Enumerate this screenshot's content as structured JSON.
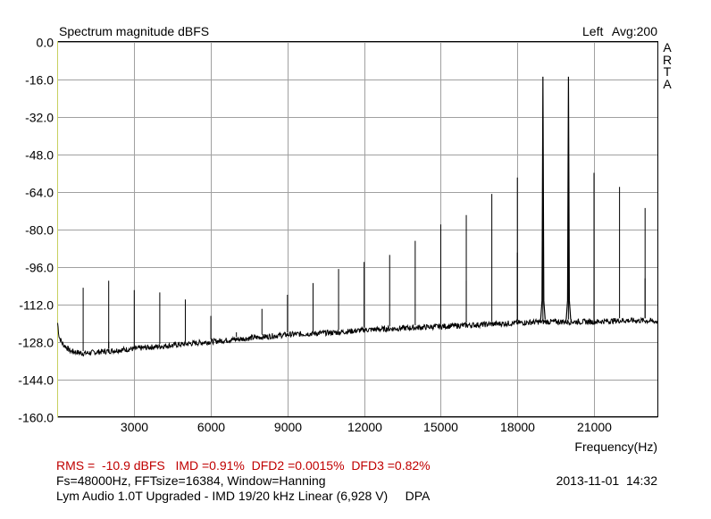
{
  "chart_data": {
    "type": "line",
    "title": "Spectrum magnitude dBFS",
    "channel_label": "Left",
    "avg_label": "Avg:200",
    "xlabel": "Frequency(Hz)",
    "ylabel": "",
    "xlim": [
      0,
      23500
    ],
    "ylim": [
      -160,
      0
    ],
    "x_ticks": [
      3000,
      6000,
      9000,
      12000,
      15000,
      18000,
      21000
    ],
    "x_tick_labels": [
      "3000",
      "6000",
      "9000",
      "12000",
      "15000",
      "18000",
      "21000"
    ],
    "y_ticks": [
      0,
      -16,
      -32,
      -48,
      -64,
      -80,
      -96,
      -112,
      -128,
      -144,
      -160
    ],
    "y_tick_labels": [
      "0.0",
      "-16.0",
      "-32.0",
      "-48.0",
      "-64.0",
      "-80.0",
      "-96.0",
      "-112.0",
      "-128.0",
      "-144.0",
      "-160.0"
    ],
    "grid": true,
    "color": "#000000",
    "noise_floor": [
      {
        "x": 0,
        "y": -120
      },
      {
        "x": 60,
        "y": -126
      },
      {
        "x": 200,
        "y": -129
      },
      {
        "x": 500,
        "y": -132
      },
      {
        "x": 1000,
        "y": -133
      },
      {
        "x": 2000,
        "y": -132
      },
      {
        "x": 3000,
        "y": -131
      },
      {
        "x": 4000,
        "y": -130
      },
      {
        "x": 5000,
        "y": -129
      },
      {
        "x": 6000,
        "y": -128
      },
      {
        "x": 7000,
        "y": -127
      },
      {
        "x": 8000,
        "y": -126
      },
      {
        "x": 9000,
        "y": -125
      },
      {
        "x": 10000,
        "y": -124.5
      },
      {
        "x": 11000,
        "y": -124
      },
      {
        "x": 12000,
        "y": -123
      },
      {
        "x": 13000,
        "y": -122.5
      },
      {
        "x": 14000,
        "y": -122
      },
      {
        "x": 15000,
        "y": -121.5
      },
      {
        "x": 16000,
        "y": -121
      },
      {
        "x": 17000,
        "y": -120.5
      },
      {
        "x": 18000,
        "y": -120
      },
      {
        "x": 19000,
        "y": -119.5
      },
      {
        "x": 20000,
        "y": -119.5
      },
      {
        "x": 21000,
        "y": -119.5
      },
      {
        "x": 22000,
        "y": -119
      },
      {
        "x": 23000,
        "y": -119
      },
      {
        "x": 23500,
        "y": -119.5
      }
    ],
    "peaks": [
      {
        "x": 1000,
        "y": -105
      },
      {
        "x": 2000,
        "y": -102
      },
      {
        "x": 2000,
        "y": -128
      },
      {
        "x": 3000,
        "y": -106
      },
      {
        "x": 4000,
        "y": -107
      },
      {
        "x": 5000,
        "y": -110
      },
      {
        "x": 6000,
        "y": -117
      },
      {
        "x": 7000,
        "y": -124
      },
      {
        "x": 8000,
        "y": -114
      },
      {
        "x": 9000,
        "y": -108
      },
      {
        "x": 10000,
        "y": -103
      },
      {
        "x": 11000,
        "y": -97
      },
      {
        "x": 12000,
        "y": -94
      },
      {
        "x": 13000,
        "y": -91
      },
      {
        "x": 14000,
        "y": -85
      },
      {
        "x": 15000,
        "y": -78
      },
      {
        "x": 16000,
        "y": -74
      },
      {
        "x": 16000,
        "y": -102
      },
      {
        "x": 17000,
        "y": -65
      },
      {
        "x": 18000,
        "y": -58
      },
      {
        "x": 18000,
        "y": -90
      },
      {
        "x": 19000,
        "y": -15
      },
      {
        "x": 19000,
        "y": -54
      },
      {
        "x": 20000,
        "y": -15
      },
      {
        "x": 20000,
        "y": -62
      },
      {
        "x": 21000,
        "y": -56
      },
      {
        "x": 21000,
        "y": -103
      },
      {
        "x": 22000,
        "y": -62
      },
      {
        "x": 23000,
        "y": -71
      },
      {
        "x": 23000,
        "y": -101
      }
    ]
  },
  "footer": {
    "measurements": "RMS =  -10.9 dBFS   IMD =0.91%  DFD2 =0.0015%  DFD3 =0.82%",
    "parameters": "Fs=48000Hz, FFTsize=16384, Window=Hanning",
    "title": "Lym Audio 1.0T Upgraded - IMD 19/20 kHz Linear (6,928 V)     DPA",
    "datetime": "2013-11-01  14:32"
  },
  "brand": [
    "A",
    "R",
    "T",
    "A"
  ]
}
